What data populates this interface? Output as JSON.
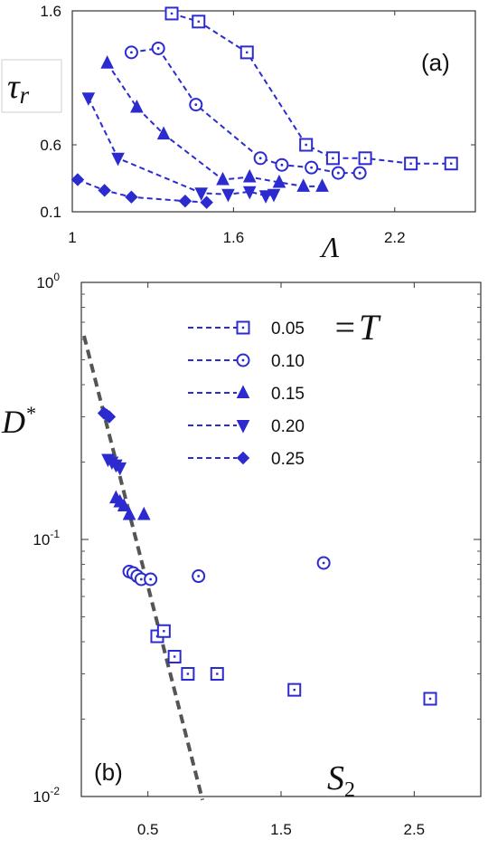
{
  "chart_data": [
    {
      "type": "line",
      "panel_label": "(a)",
      "ylabel": "τ_r",
      "xlabel": "Λ",
      "xlim": [
        1,
        2.5
      ],
      "ylim": [
        0.1,
        1.6
      ],
      "x_ticks": [
        "1",
        "1.6",
        "2.2"
      ],
      "y_ticks": [
        "1.6",
        "0.6",
        "0.1"
      ],
      "x_tick_values": [
        1,
        1.6,
        2.2
      ],
      "y_tick_values": [
        1.6,
        0.6,
        0.1
      ],
      "color": "#2b2bd0",
      "series": [
        {
          "marker": "square",
          "x": [
            1.37,
            1.47,
            1.65,
            1.87,
            1.97,
            2.09,
            2.26,
            2.41
          ],
          "y": [
            1.58,
            1.52,
            1.29,
            0.6,
            0.5,
            0.5,
            0.46,
            0.46
          ]
        },
        {
          "marker": "circle",
          "x": [
            1.22,
            1.32,
            1.46,
            1.7,
            1.78,
            1.89,
            1.99,
            2.07
          ],
          "y": [
            1.29,
            1.32,
            0.9,
            0.5,
            0.45,
            0.43,
            0.39,
            0.39
          ]
        },
        {
          "marker": "triangle-up",
          "x": [
            1.13,
            1.24,
            1.34,
            1.56,
            1.66,
            1.77,
            1.86,
            1.93
          ],
          "y": [
            1.21,
            0.88,
            0.68,
            0.34,
            0.36,
            0.32,
            0.29,
            0.29
          ]
        },
        {
          "marker": "triangle-down",
          "x": [
            1.06,
            1.17,
            1.48,
            1.58,
            1.66,
            1.72,
            1.75
          ],
          "y": [
            0.95,
            0.5,
            0.24,
            0.23,
            0.25,
            0.22,
            0.23
          ]
        },
        {
          "marker": "diamond",
          "x": [
            1.02,
            1.12,
            1.22,
            1.42,
            1.5
          ],
          "y": [
            0.34,
            0.26,
            0.21,
            0.18,
            0.17
          ]
        }
      ]
    },
    {
      "type": "scatter",
      "panel_label": "(b)",
      "ylabel": "D*",
      "xlabel": "S_2",
      "yscale": "log",
      "xlim": [
        0,
        3.0
      ],
      "ylim": [
        0.01,
        1
      ],
      "x_ticks": [
        "0.5",
        "1.5",
        "2.5"
      ],
      "x_tick_values": [
        0.5,
        1.5,
        2.5
      ],
      "y_ticks": [
        {
          "value": 1,
          "base": "10",
          "exp": "0"
        },
        {
          "value": 0.1,
          "base": "10",
          "exp": "-1"
        },
        {
          "value": 0.01,
          "base": "10",
          "exp": "-2"
        }
      ],
      "legend": {
        "placement": "top-right",
        "title": "= T",
        "entries": [
          "0.05",
          "0.10",
          "0.15",
          "0.20",
          "0.25"
        ]
      },
      "guide_line": {
        "style": "dashed",
        "color": "#555555",
        "points": [
          [
            0.02,
            0.62
          ],
          [
            0.91,
            0.0097
          ]
        ]
      },
      "color": "#2b2bd0",
      "series": [
        {
          "marker": "square",
          "x": [
            0.57,
            0.62,
            0.7,
            0.8,
            1.02,
            1.6,
            2.62
          ],
          "y": [
            0.042,
            0.044,
            0.035,
            0.03,
            0.03,
            0.026,
            0.024
          ]
        },
        {
          "marker": "circle",
          "x": [
            0.36,
            0.39,
            0.42,
            0.45,
            0.52,
            0.88,
            1.82
          ],
          "y": [
            0.075,
            0.074,
            0.072,
            0.07,
            0.07,
            0.072,
            0.081
          ]
        },
        {
          "marker": "triangle-up",
          "x": [
            0.26,
            0.29,
            0.32,
            0.36,
            0.47
          ],
          "y": [
            0.145,
            0.14,
            0.135,
            0.125,
            0.125
          ]
        },
        {
          "marker": "triangle-down",
          "x": [
            0.2,
            0.23,
            0.26,
            0.29
          ],
          "y": [
            0.205,
            0.2,
            0.195,
            0.19
          ]
        },
        {
          "marker": "diamond",
          "x": [
            0.17,
            0.19,
            0.21
          ],
          "y": [
            0.31,
            0.305,
            0.3
          ]
        }
      ]
    }
  ]
}
